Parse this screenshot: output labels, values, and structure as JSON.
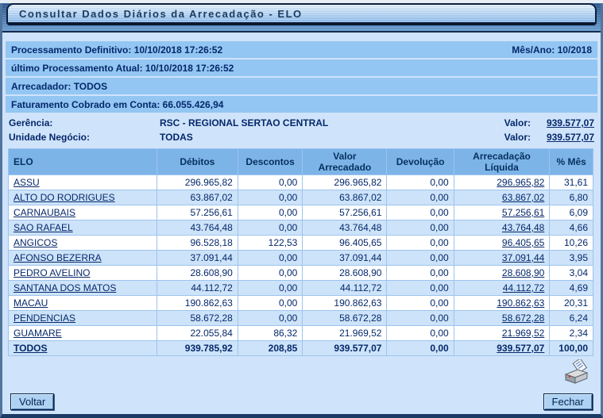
{
  "title": "Consultar Dados Diários da Arrecadação - ELO",
  "info_rows": [
    {
      "left": "Processamento Definitivo: 10/10/2018 17:26:52",
      "right": "Mês/Ano: 10/2018"
    },
    {
      "left": "último Processamento Atual: 10/10/2018 17:26:52",
      "right": ""
    },
    {
      "left": "Arrecadador: TODOS",
      "right": ""
    },
    {
      "left": "Faturamento Cobrado em Conta: 66.055.426,94",
      "right": ""
    }
  ],
  "summary": [
    {
      "label": "Gerência:",
      "value": "RSC - REGIONAL SERTAO CENTRAL",
      "valor_label": "Valor:",
      "valor_value": "939.577,07"
    },
    {
      "label": "Unidade Negócio:",
      "value": "TODAS",
      "valor_label": "Valor:",
      "valor_value": "939.577,07"
    }
  ],
  "table": {
    "columns": [
      "ELO",
      "Débitos",
      "Descontos",
      "Valor Arrecadado",
      "Devolução",
      "Arrecadação Líquida",
      "% Mês"
    ],
    "rows": [
      {
        "elo": "ASSU",
        "debitos": "296.965,82",
        "descontos": "0,00",
        "valor_arrecadado": "296.965,82",
        "devolucao": "0,00",
        "arrecadacao_liquida": "296.965,82",
        "pct_mes": "31,61",
        "bold": false
      },
      {
        "elo": "ALTO DO RODRIGUES",
        "debitos": "63.867,02",
        "descontos": "0,00",
        "valor_arrecadado": "63.867,02",
        "devolucao": "0,00",
        "arrecadacao_liquida": "63.867,02",
        "pct_mes": "6,80",
        "bold": false
      },
      {
        "elo": "CARNAUBAIS",
        "debitos": "57.256,61",
        "descontos": "0,00",
        "valor_arrecadado": "57.256,61",
        "devolucao": "0,00",
        "arrecadacao_liquida": "57.256,61",
        "pct_mes": "6,09",
        "bold": false
      },
      {
        "elo": "SAO RAFAEL",
        "debitos": "43.764,48",
        "descontos": "0,00",
        "valor_arrecadado": "43.764,48",
        "devolucao": "0,00",
        "arrecadacao_liquida": "43.764,48",
        "pct_mes": "4,66",
        "bold": false
      },
      {
        "elo": "ANGICOS",
        "debitos": "96.528,18",
        "descontos": "122,53",
        "valor_arrecadado": "96.405,65",
        "devolucao": "0,00",
        "arrecadacao_liquida": "96.405,65",
        "pct_mes": "10,26",
        "bold": false
      },
      {
        "elo": "AFONSO BEZERRA",
        "debitos": "37.091,44",
        "descontos": "0,00",
        "valor_arrecadado": "37.091,44",
        "devolucao": "0,00",
        "arrecadacao_liquida": "37.091,44",
        "pct_mes": "3,95",
        "bold": false
      },
      {
        "elo": "PEDRO AVELINO",
        "debitos": "28.608,90",
        "descontos": "0,00",
        "valor_arrecadado": "28.608,90",
        "devolucao": "0,00",
        "arrecadacao_liquida": "28.608,90",
        "pct_mes": "3,04",
        "bold": false
      },
      {
        "elo": "SANTANA DOS MATOS",
        "debitos": "44.112,72",
        "descontos": "0,00",
        "valor_arrecadado": "44.112,72",
        "devolucao": "0,00",
        "arrecadacao_liquida": "44.112,72",
        "pct_mes": "4,69",
        "bold": false
      },
      {
        "elo": "MACAU",
        "debitos": "190.862,63",
        "descontos": "0,00",
        "valor_arrecadado": "190.862,63",
        "devolucao": "0,00",
        "arrecadacao_liquida": "190.862,63",
        "pct_mes": "20,31",
        "bold": false
      },
      {
        "elo": "PENDENCIAS",
        "debitos": "58.672,28",
        "descontos": "0,00",
        "valor_arrecadado": "58.672,28",
        "devolucao": "0,00",
        "arrecadacao_liquida": "58.672,28",
        "pct_mes": "6,24",
        "bold": false
      },
      {
        "elo": "GUAMARE",
        "debitos": "22.055,84",
        "descontos": "86,32",
        "valor_arrecadado": "21.969,52",
        "devolucao": "0,00",
        "arrecadacao_liquida": "21.969,52",
        "pct_mes": "2,34",
        "bold": false
      },
      {
        "elo": "TODOS",
        "debitos": "939.785,92",
        "descontos": "208,85",
        "valor_arrecadado": "939.577,07",
        "devolucao": "0,00",
        "arrecadacao_liquida": "939.577,07",
        "pct_mes": "100,00",
        "bold": true
      }
    ]
  },
  "icons": {
    "printer": "printer-icon"
  },
  "buttons": {
    "back": "Voltar",
    "close": "Fechar"
  },
  "colors": {
    "info_bar_bg": "#93c6f2",
    "table_header_bg": "#7db4e8",
    "alt_row_bg": "#cde3f9",
    "text_navy": "#05286b",
    "frame": "#51749c",
    "title_band_top": "#2d5a94"
  }
}
